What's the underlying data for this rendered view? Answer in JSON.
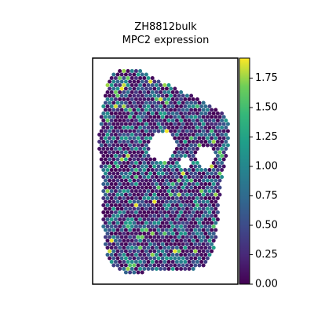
{
  "chart_data": {
    "type": "scatter",
    "title": "ZH8812bulk",
    "subtitle": "MPC2 expression",
    "xlabel": "",
    "ylabel": "",
    "colorbar": {
      "colormap": "viridis",
      "range": [
        0.0,
        1.92
      ],
      "ticks": [
        0.0,
        0.25,
        0.5,
        0.75,
        1.0,
        1.25,
        1.5,
        1.75
      ],
      "tick_labels": [
        "0.00",
        "0.25",
        "0.50",
        "0.75",
        "1.00",
        "1.25",
        "1.50",
        "1.75"
      ]
    },
    "axes_ticks_visible": false,
    "grid": false,
    "background_spot_color": "#440154"
  }
}
